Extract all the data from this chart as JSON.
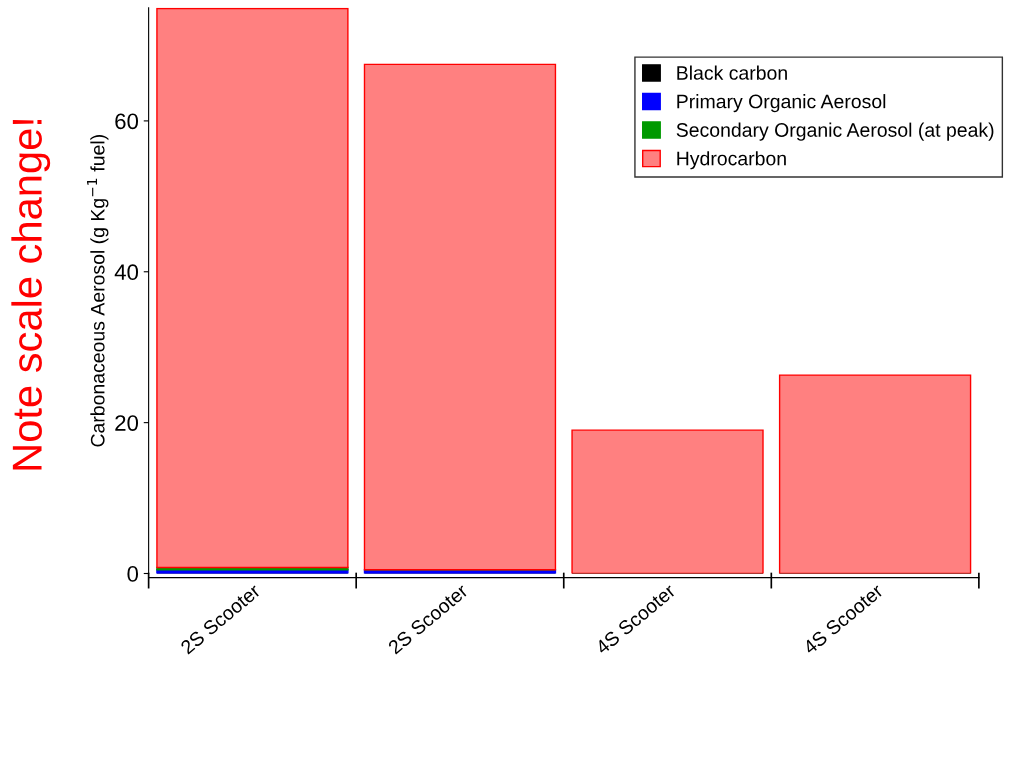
{
  "chart_data": {
    "type": "bar",
    "stacked": true,
    "ylabel": "Carbonaceous Aerosol (g Kg$^{−1}$ fuel)",
    "annotations": [
      "Note scale change!"
    ],
    "categories": [
      "2S Scooter",
      "2S Scooter",
      "4S Scooter",
      "4S Scooter"
    ],
    "series": [
      {
        "name": "Black carbon",
        "color": "#000000",
        "values": [
          null,
          null,
          null,
          null
        ]
      },
      {
        "name": "Primary Organic Aerosol",
        "color": "#0000ff",
        "values": [
          0.5,
          0.5,
          null,
          null
        ]
      },
      {
        "name": "Secondary Organic Aerosol (at peak)",
        "color": "#009900",
        "values": [
          0.3,
          null,
          null,
          null
        ]
      },
      {
        "name": "Hydrocarbon",
        "color": "#ff8080",
        "values": [
          74.1,
          67.0,
          19.0,
          26.3
        ]
      }
    ],
    "ylim": [
      0,
      75
    ],
    "yticks": [
      0,
      20,
      40,
      60
    ],
    "grid": false,
    "legend": "top right"
  }
}
